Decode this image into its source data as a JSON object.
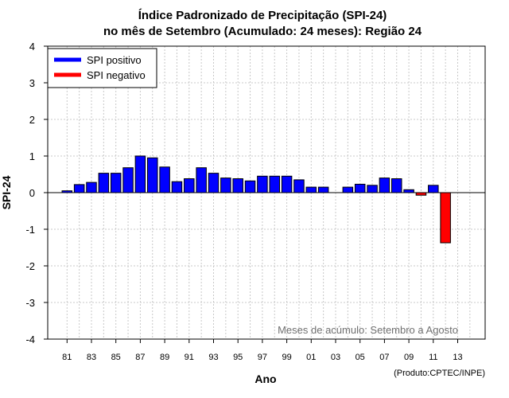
{
  "chart_data": {
    "type": "bar",
    "title": "Índice Padronizado de Precipitação (SPI-24)",
    "subtitle": "no mês de Setembro (Acumulado: 24 meses): Região 24",
    "xlabel": "Ano",
    "ylabel": "SPI-24",
    "ylim": [
      -4,
      4
    ],
    "yticks": [
      "-4",
      "-3",
      "-2",
      "-1",
      "0",
      "1",
      "2",
      "3",
      "4"
    ],
    "xticks": [
      "81",
      "83",
      "85",
      "87",
      "89",
      "91",
      "93",
      "95",
      "97",
      "99",
      "01",
      "03",
      "05",
      "07",
      "09",
      "11",
      "13"
    ],
    "legend_position": "top-left",
    "legend": [
      {
        "label": "SPI positivo",
        "color": "#0000ff"
      },
      {
        "label": "SPI negativo",
        "color": "#ff0000"
      }
    ],
    "annotation": "Meses de acúmulo: Setembro a Agosto",
    "credit": "(Produto:CPTEC/INPE)",
    "colors": {
      "positive": "#0000ff",
      "negative": "#ff0000",
      "zero_line": "#000000"
    },
    "categories": [
      "81",
      "82",
      "83",
      "84",
      "85",
      "86",
      "87",
      "88",
      "89",
      "90",
      "91",
      "92",
      "93",
      "94",
      "95",
      "96",
      "97",
      "98",
      "99",
      "00",
      "01",
      "02",
      "03",
      "04",
      "05",
      "06",
      "07",
      "08",
      "09",
      "10",
      "11",
      "12"
    ],
    "values": [
      0.05,
      0.22,
      0.28,
      0.53,
      0.53,
      0.68,
      1.0,
      0.95,
      0.7,
      0.3,
      0.38,
      0.68,
      0.53,
      0.4,
      0.38,
      0.32,
      0.45,
      0.45,
      0.45,
      0.35,
      0.15,
      0.15,
      0.0,
      0.15,
      0.23,
      0.2,
      0.4,
      0.38,
      0.08,
      -0.07,
      0.2,
      -1.37
    ]
  }
}
